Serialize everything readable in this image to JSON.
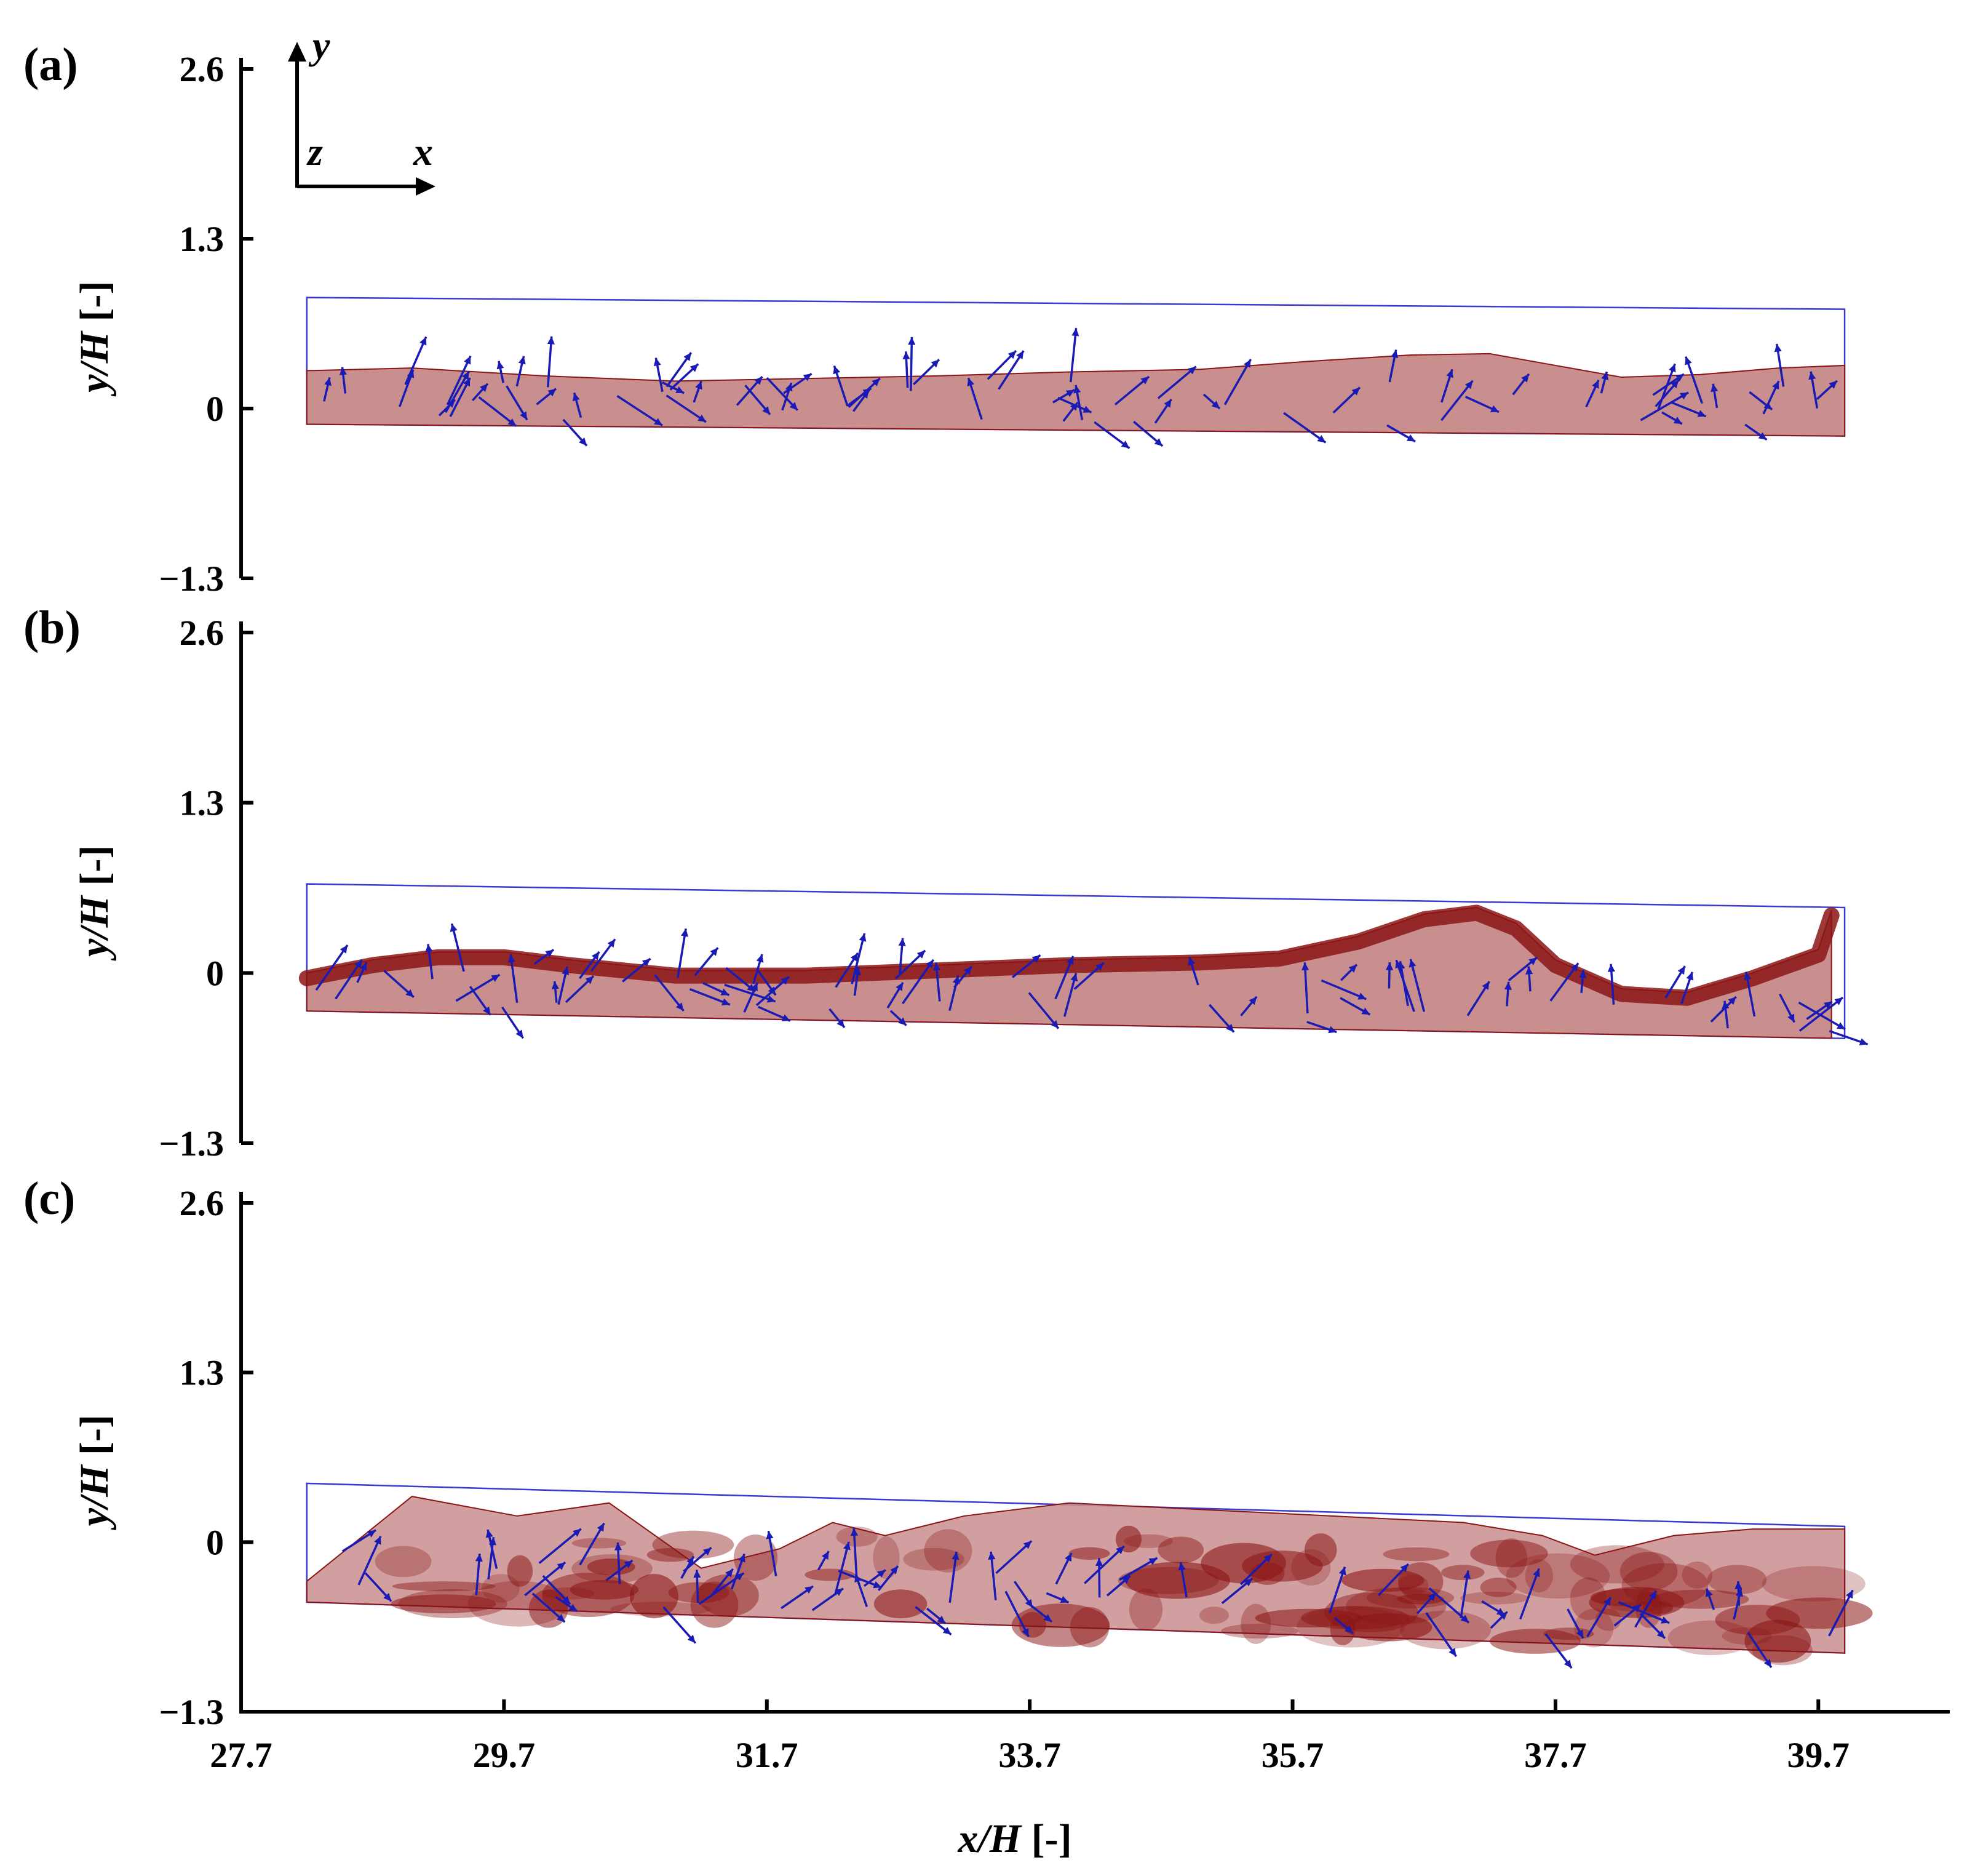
{
  "figure": {
    "panels": [
      {
        "label": "(a)"
      },
      {
        "label": "(b)"
      },
      {
        "label": "(c)"
      }
    ],
    "coordinate_system": {
      "y": "y",
      "z": "z",
      "x": "x"
    },
    "x_axis": {
      "label_italic": "x/H",
      "label_unit": " [-]"
    },
    "y_axis": {
      "label_italic": "y/H",
      "label_unit": " [-]"
    }
  },
  "colors": {
    "fluid_light": "#c98e8e",
    "fluid_dark": "#8b1515",
    "arrow": "#1a1ab4",
    "domain_outline": "#3a3ad0",
    "axis": "#000000"
  },
  "chart_data": [
    {
      "panel": "(a)",
      "type": "area",
      "x": [
        28.2,
        29.0,
        30.0,
        31.0,
        32.0,
        33.0,
        34.0,
        35.0,
        35.8,
        36.6,
        37.2,
        37.7,
        38.2,
        38.8,
        39.4,
        39.9
      ],
      "y": [
        0.29,
        0.31,
        0.25,
        0.21,
        0.23,
        0.25,
        0.28,
        0.3,
        0.36,
        0.41,
        0.42,
        0.33,
        0.24,
        0.26,
        0.31,
        0.33
      ],
      "ylim": [
        -1.3,
        2.6
      ],
      "xlim": [
        27.7,
        40.7
      ],
      "xticks": [
        "27.7",
        "29.7",
        "31.7",
        "33.7",
        "35.7",
        "37.7",
        "39.7"
      ],
      "yticks": [
        "2.6",
        "1.3",
        "0",
        "−1.3"
      ]
    },
    {
      "panel": "(b)",
      "type": "area",
      "x": [
        28.2,
        28.7,
        29.2,
        29.7,
        30.2,
        31.0,
        32.0,
        33.0,
        34.0,
        35.0,
        35.6,
        36.2,
        36.7,
        37.1,
        37.4,
        37.7,
        38.2,
        38.7,
        39.2,
        39.7,
        39.8
      ],
      "y": [
        0.0,
        0.1,
        0.16,
        0.16,
        0.1,
        0.02,
        0.02,
        0.06,
        0.1,
        0.12,
        0.15,
        0.28,
        0.45,
        0.5,
        0.38,
        0.1,
        -0.12,
        -0.15,
        0.0,
        0.18,
        0.48
      ],
      "ylim": [
        -1.3,
        2.6
      ],
      "xlim": [
        27.7,
        40.7
      ],
      "xticks": [
        "27.7",
        "29.7",
        "31.7",
        "33.7",
        "35.7",
        "37.7",
        "39.7"
      ],
      "yticks": [
        "2.6",
        "1.3",
        "0",
        "−1.3"
      ]
    },
    {
      "panel": "(c)",
      "type": "area",
      "x": [
        28.2,
        29.0,
        29.8,
        30.5,
        31.2,
        31.8,
        32.2,
        32.6,
        33.2,
        34.0,
        35.0,
        36.0,
        37.0,
        37.6,
        38.0,
        38.6,
        39.2,
        39.9
      ],
      "y": [
        -0.3,
        0.35,
        0.2,
        0.3,
        -0.2,
        -0.05,
        0.15,
        0.05,
        0.2,
        0.3,
        0.25,
        0.2,
        0.15,
        0.05,
        -0.1,
        0.05,
        0.1,
        0.1
      ],
      "ylim": [
        -1.3,
        2.6
      ],
      "xlim": [
        27.7,
        40.7
      ],
      "xticks": [
        "27.7",
        "29.7",
        "31.7",
        "33.7",
        "35.7",
        "37.7",
        "39.7"
      ],
      "yticks": [
        "2.6",
        "1.3",
        "0",
        "−1.3"
      ]
    }
  ]
}
